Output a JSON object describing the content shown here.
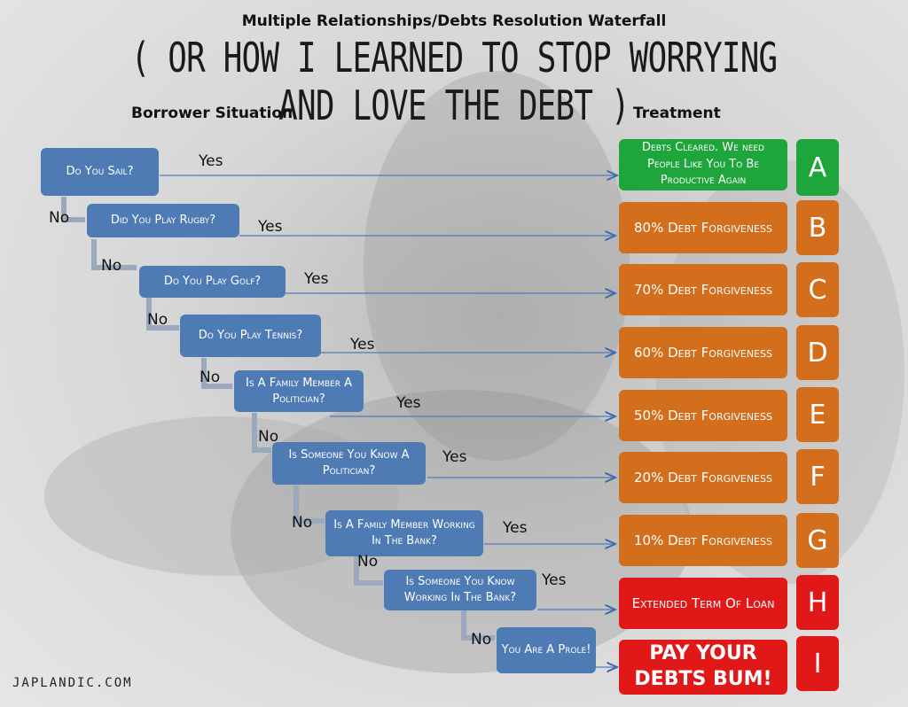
{
  "title": "Multiple Relationships/Debts Resolution Waterfall",
  "subtitle": "( OR HOW I LEARNED TO STOP WORRYING AND LOVE THE DEBT )",
  "columns": {
    "borrower": "Borrower Situation",
    "treatment": "Treatment"
  },
  "questions": [
    "Do You Sail?",
    "Did You Play Rugby?",
    "Do You Play Golf?",
    "Do You Play Tennis?",
    "Is A Family Member A Politician?",
    "Is Someone You Know A Politician?",
    "Is A Family Member Working In The Bank?",
    "Is Someone You Know Working In The Bank?",
    "You Are A Prole!"
  ],
  "treatments": [
    {
      "text": "Debts Cleared. We need People Like You To Be Productive Again",
      "letter": "A",
      "color": "#1ea63c"
    },
    {
      "text": "80% Debt Forgiveness",
      "letter": "B",
      "color": "#d26e1c"
    },
    {
      "text": "70% Debt Forgiveness",
      "letter": "C",
      "color": "#d26e1c"
    },
    {
      "text": "60% Debt Forgiveness",
      "letter": "D",
      "color": "#d26e1c"
    },
    {
      "text": "50% Debt Forgiveness",
      "letter": "E",
      "color": "#d26e1c"
    },
    {
      "text": "20% Debt Forgiveness",
      "letter": "F",
      "color": "#d26e1c"
    },
    {
      "text": "10% Debt Forgiveness",
      "letter": "G",
      "color": "#d26e1c"
    },
    {
      "text": "Extended Term Of Loan",
      "letter": "H",
      "color": "#e01818"
    },
    {
      "text": "PAY YOUR DEBTS BUM!",
      "letter": "I",
      "color": "#e01818"
    }
  ],
  "labels": {
    "yes": "Yes",
    "no": "No"
  },
  "credit": "JAPLANDIC.COM"
}
